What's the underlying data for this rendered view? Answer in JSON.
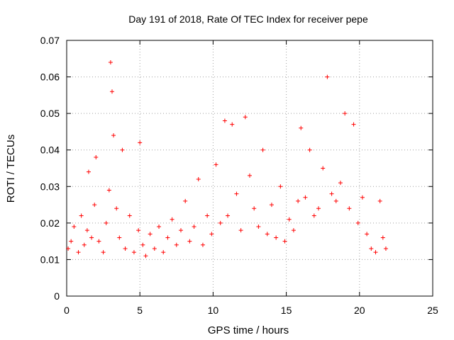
{
  "chart_data": {
    "type": "scatter",
    "title": "Day 191 of 2018, Rate Of TEC Index for receiver pepe",
    "xlabel": "GPS time / hours",
    "ylabel": "ROTI / TECUs",
    "xlim": [
      0,
      25
    ],
    "ylim": [
      0,
      0.07
    ],
    "x_ticks": [
      0,
      5,
      10,
      15,
      20,
      25
    ],
    "x_tick_labels": [
      "0",
      "5",
      "10",
      "15",
      "20",
      "25"
    ],
    "y_ticks": [
      0,
      0.01,
      0.02,
      0.03,
      0.04,
      0.05,
      0.06,
      0.07
    ],
    "y_tick_labels": [
      "0",
      "0.01",
      "0.02",
      "0.03",
      "0.04",
      "0.05",
      "0.06",
      "0.07"
    ],
    "grid": true,
    "marker": "+",
    "marker_color": "#ff0000",
    "series": [
      {
        "name": "ROTI",
        "x": [
          0.1,
          0.3,
          0.5,
          0.8,
          1.0,
          1.2,
          1.4,
          1.5,
          1.7,
          1.9,
          2.0,
          2.2,
          2.5,
          2.7,
          2.9,
          3.0,
          3.1,
          3.2,
          3.4,
          3.6,
          3.8,
          4.0,
          4.3,
          4.6,
          4.9,
          5.0,
          5.2,
          5.4,
          5.7,
          6.0,
          6.3,
          6.6,
          6.9,
          7.2,
          7.5,
          7.8,
          8.1,
          8.4,
          8.7,
          9.0,
          9.3,
          9.6,
          9.9,
          10.2,
          10.5,
          10.8,
          11.0,
          11.3,
          11.6,
          11.9,
          12.2,
          12.5,
          12.8,
          13.1,
          13.4,
          13.7,
          14.0,
          14.3,
          14.6,
          14.9,
          15.2,
          15.5,
          15.8,
          16.0,
          16.3,
          16.6,
          16.9,
          17.2,
          17.5,
          17.8,
          18.1,
          18.4,
          18.7,
          19.0,
          19.3,
          19.6,
          19.9,
          20.2,
          20.5,
          20.8,
          21.1,
          21.4,
          21.6,
          21.8
        ],
        "y": [
          0.013,
          0.015,
          0.019,
          0.012,
          0.022,
          0.014,
          0.018,
          0.034,
          0.016,
          0.025,
          0.038,
          0.015,
          0.012,
          0.02,
          0.029,
          0.064,
          0.056,
          0.044,
          0.024,
          0.016,
          0.04,
          0.013,
          0.022,
          0.012,
          0.018,
          0.042,
          0.014,
          0.011,
          0.017,
          0.013,
          0.019,
          0.012,
          0.016,
          0.021,
          0.014,
          0.018,
          0.026,
          0.015,
          0.019,
          0.032,
          0.014,
          0.022,
          0.017,
          0.036,
          0.02,
          0.048,
          0.022,
          0.047,
          0.028,
          0.018,
          0.049,
          0.033,
          0.024,
          0.019,
          0.04,
          0.017,
          0.025,
          0.016,
          0.03,
          0.015,
          0.021,
          0.018,
          0.026,
          0.046,
          0.027,
          0.04,
          0.022,
          0.024,
          0.035,
          0.06,
          0.028,
          0.026,
          0.031,
          0.05,
          0.024,
          0.047,
          0.02,
          0.027,
          0.017,
          0.013,
          0.012,
          0.026,
          0.016,
          0.013
        ]
      }
    ]
  }
}
